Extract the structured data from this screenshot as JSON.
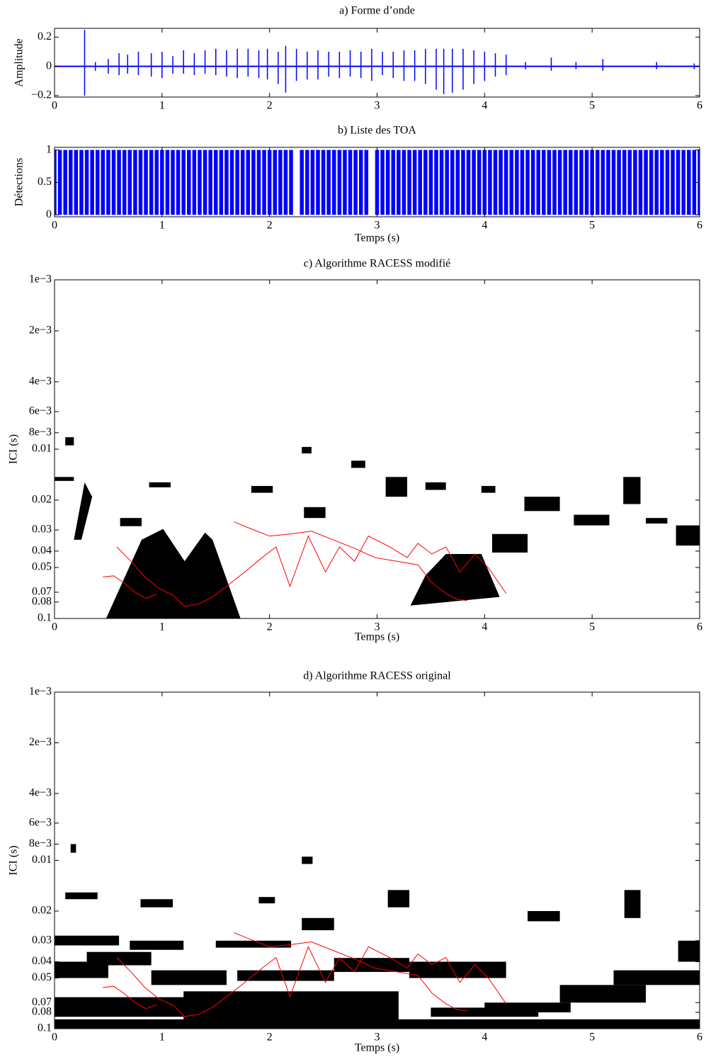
{
  "chart_data": [
    {
      "type": "waveform",
      "title": "a) Forme d’onde",
      "ylabel": "Amplitude",
      "color": "#0000ff",
      "xlim": [
        0,
        6
      ],
      "xticks": [
        0,
        1,
        2,
        3,
        4,
        5,
        6
      ],
      "ylim": [
        -0.21,
        0.26
      ],
      "yticks": [
        {
          "value": -0.2,
          "label": "−0.2"
        },
        0,
        0.2
      ],
      "x": [
        0.28,
        0.38,
        0.5,
        0.6,
        0.68,
        0.78,
        0.9,
        1.0,
        1.1,
        1.2,
        1.3,
        1.4,
        1.5,
        1.6,
        1.7,
        1.8,
        1.9,
        1.98,
        2.08,
        2.15,
        2.25,
        2.35,
        2.45,
        2.55,
        2.65,
        2.75,
        2.85,
        2.95,
        3.05,
        3.15,
        3.25,
        3.35,
        3.45,
        3.55,
        3.62,
        3.7,
        3.8,
        3.9,
        4.0,
        4.1,
        4.2,
        4.38,
        4.62,
        4.85,
        5.1,
        5.6,
        5.95
      ],
      "upper": [
        0.25,
        0.03,
        0.05,
        0.09,
        0.08,
        0.1,
        0.09,
        0.1,
        0.07,
        0.11,
        0.09,
        0.11,
        0.12,
        0.11,
        0.12,
        0.12,
        0.11,
        0.12,
        0.1,
        0.14,
        0.12,
        0.1,
        0.11,
        0.1,
        0.1,
        0.11,
        0.1,
        0.12,
        0.1,
        0.1,
        0.11,
        0.11,
        0.12,
        0.12,
        0.12,
        0.12,
        0.12,
        0.11,
        0.1,
        0.09,
        0.08,
        0.03,
        0.06,
        0.03,
        0.05,
        0.03,
        0.02
      ],
      "lower": [
        -0.2,
        -0.03,
        -0.05,
        -0.06,
        -0.05,
        -0.06,
        -0.07,
        -0.08,
        -0.05,
        -0.05,
        -0.06,
        -0.05,
        -0.06,
        -0.07,
        -0.08,
        -0.07,
        -0.08,
        -0.09,
        -0.12,
        -0.18,
        -0.1,
        -0.09,
        -0.09,
        -0.07,
        -0.08,
        -0.07,
        -0.08,
        -0.1,
        -0.06,
        -0.08,
        -0.1,
        -0.1,
        -0.12,
        -0.16,
        -0.19,
        -0.18,
        -0.16,
        -0.12,
        -0.1,
        -0.07,
        -0.06,
        -0.02,
        -0.03,
        -0.02,
        -0.03,
        -0.02,
        -0.02
      ]
    },
    {
      "type": "event",
      "title": "b) Liste des TOA",
      "ylabel": "Détections",
      "xlabel": "Temps (s)",
      "color": "#0000ff",
      "xlim": [
        0,
        6
      ],
      "xticks": [
        0,
        1,
        2,
        3,
        4,
        5,
        6
      ],
      "ylim": [
        -0.03,
        1.04
      ],
      "yticks": [
        0,
        0.5,
        1
      ],
      "x": [
        0,
        0.05,
        0.1,
        0.15,
        0.2,
        0.25,
        0.3,
        0.35,
        0.4,
        0.45,
        0.5,
        0.55,
        0.6,
        0.65,
        0.7,
        0.75,
        0.8,
        0.85,
        0.9,
        0.95,
        1.0,
        1.05,
        1.1,
        1.15,
        1.2,
        1.25,
        1.3,
        1.35,
        1.4,
        1.45,
        1.5,
        1.55,
        1.6,
        1.65,
        1.7,
        1.75,
        1.8,
        1.85,
        1.9,
        1.95,
        2.0,
        2.05,
        2.1,
        2.15,
        2.2,
        2.3,
        2.35,
        2.4,
        2.45,
        2.5,
        2.55,
        2.6,
        2.65,
        2.7,
        2.75,
        2.8,
        2.85,
        2.9,
        3.0,
        3.05,
        3.1,
        3.15,
        3.2,
        3.25,
        3.3,
        3.35,
        3.4,
        3.45,
        3.5,
        3.55,
        3.6,
        3.65,
        3.7,
        3.75,
        3.8,
        3.85,
        3.9,
        3.95,
        4.0,
        4.05,
        4.1,
        4.15,
        4.2,
        4.25,
        4.3,
        4.35,
        4.4,
        4.45,
        4.5,
        4.55,
        4.6,
        4.65,
        4.7,
        4.75,
        4.8,
        4.85,
        4.9,
        4.95,
        5.0,
        5.05,
        5.1,
        5.15,
        5.2,
        5.25,
        5.3,
        5.35,
        5.4,
        5.45,
        5.5,
        5.55,
        5.6,
        5.65,
        5.7,
        5.75,
        5.8,
        5.85,
        5.9,
        5.95,
        6.0
      ],
      "values": [
        1,
        1,
        1,
        1,
        1,
        1,
        1,
        1,
        1,
        1,
        1,
        1,
        1,
        1,
        1,
        1,
        1,
        1,
        1,
        1,
        1,
        1,
        1,
        1,
        1,
        1,
        1,
        1,
        1,
        1,
        1,
        1,
        1,
        1,
        1,
        1,
        1,
        1,
        1,
        1,
        1,
        1,
        1,
        1,
        1,
        1,
        1,
        1,
        1,
        1,
        1,
        1,
        1,
        1,
        1,
        1,
        1,
        1,
        1,
        1,
        1,
        1,
        1,
        1,
        1,
        1,
        1,
        1,
        1,
        1,
        1,
        1,
        1,
        1,
        1,
        1,
        1,
        1,
        1,
        1,
        1,
        1,
        1,
        1,
        1,
        1,
        1,
        1,
        1,
        1,
        1,
        1,
        1,
        1,
        1,
        1,
        1,
        1,
        1,
        1,
        1,
        1,
        1,
        1,
        1,
        1,
        1,
        1,
        1,
        1,
        1,
        1,
        1,
        1,
        1,
        1,
        1,
        1,
        1
      ]
    },
    {
      "type": "image",
      "title": "c) Algorithme RACESS modifié",
      "ylabel": "ICI (s)",
      "xlabel": "Temps (s)",
      "log_y": true,
      "y_reversed": true,
      "color": "#000000",
      "xlim": [
        0,
        6
      ],
      "xticks": [
        0,
        1,
        2,
        3,
        4,
        5,
        6
      ],
      "ylim": [
        0.001,
        0.1
      ],
      "yticks": [
        {
          "value": 0.001,
          "label": "1e−3"
        },
        {
          "value": 0.002,
          "label": "2e−3"
        },
        {
          "value": 0.004,
          "label": "4e−3"
        },
        {
          "value": 0.006,
          "label": "6e−3"
        },
        {
          "value": 0.008,
          "label": "8e−3"
        },
        0.01,
        0.02,
        0.03,
        0.04,
        0.05,
        0.07,
        0.08,
        0.1
      ],
      "blobs": [
        {
          "x": [
            0.48,
            0.81,
            1.01,
            1.21,
            1.4,
            1.47,
            1.73
          ],
          "y": [
            0.1,
            0.0343,
            0.0296,
            0.0459,
            0.0311,
            0.0343,
            0.1
          ]
        },
        {
          "x": [
            3.31,
            3.45,
            3.64,
            3.97,
            4.14
          ],
          "y": [
            0.0839,
            0.0557,
            0.0416,
            0.0416,
            0.0746
          ]
        },
        {
          "x": [
            4.07,
            4.4
          ],
          "y": [
            0.0317,
            0.0408
          ]
        },
        {
          "x": [
            5.78,
            6.0
          ],
          "y": [
            0.0282,
            0.0371
          ]
        },
        {
          "x": [
            0.18,
            0.28,
            0.35,
            0.25
          ],
          "y": [
            0.0343,
            0.0157,
            0.0191,
            0.0343
          ]
        },
        {
          "x": [
            0,
            0.18
          ],
          "y": [
            0.0146,
            0.0154
          ]
        },
        {
          "x": [
            3.08,
            3.28
          ],
          "y": [
            0.0146,
            0.0191
          ]
        },
        {
          "x": [
            5.29,
            5.45
          ],
          "y": [
            0.0146,
            0.0211
          ]
        },
        {
          "x": [
            4.37,
            4.7
          ],
          "y": [
            0.0191,
            0.0232
          ]
        },
        {
          "x": [
            4.83,
            5.16
          ],
          "y": [
            0.0244,
            0.0282
          ]
        },
        {
          "x": [
            2.32,
            2.52
          ],
          "y": [
            0.022,
            0.0255
          ]
        },
        {
          "x": [
            1.83,
            2.03
          ],
          "y": [
            0.0165,
            0.0181
          ]
        },
        {
          "x": [
            0.61,
            0.81
          ],
          "y": [
            0.0255,
            0.0285
          ]
        },
        {
          "x": [
            2.3,
            2.39
          ],
          "y": [
            0.0097,
            0.0106
          ]
        },
        {
          "x": [
            2.76,
            2.89
          ],
          "y": [
            0.0117,
            0.0129
          ]
        },
        {
          "x": [
            3.45,
            3.64
          ],
          "y": [
            0.0157,
            0.0174
          ]
        },
        {
          "x": [
            3.97,
            4.1
          ],
          "y": [
            0.0165,
            0.0181
          ]
        },
        {
          "x": [
            0.88,
            1.08
          ],
          "y": [
            0.0157,
            0.0168
          ]
        },
        {
          "x": [
            5.5,
            5.7
          ],
          "y": [
            0.0255,
            0.0275
          ]
        },
        {
          "x": [
            0.1,
            0.18
          ],
          "y": [
            0.0085,
            0.0095
          ]
        }
      ],
      "series": [
        {
          "color": "#ff0000",
          "x": [
            0.45,
            0.55,
            0.65,
            0.75,
            0.85,
            0.95
          ],
          "values": [
            0.0569,
            0.056,
            0.062,
            0.07,
            0.076,
            0.072
          ]
        },
        {
          "color": "#ff0000",
          "x": [
            0.58,
            0.71,
            0.84,
            0.97,
            1.11,
            1.21,
            1.34,
            1.47,
            1.6,
            1.77,
            1.93,
            2.06,
            2.19,
            2.36,
            2.52,
            2.65,
            2.79,
            2.92,
            3.12,
            3.28,
            3.38,
            3.51,
            3.64,
            3.77,
            3.91,
            4.04,
            4.2
          ],
          "values": [
            0.0378,
            0.0459,
            0.0569,
            0.0664,
            0.0732,
            0.0848,
            0.0822,
            0.0746,
            0.0646,
            0.0531,
            0.0437,
            0.0378,
            0.0646,
            0.0326,
            0.0531,
            0.0378,
            0.0459,
            0.0326,
            0.0378,
            0.0437,
            0.036,
            0.0416,
            0.0378,
            0.0531,
            0.0416,
            0.0506,
            0.0711
          ]
        },
        {
          "color": "#ff0000",
          "x": [
            1.67,
            1.83,
            2.0,
            2.19,
            2.39,
            2.59,
            2.79,
            2.98,
            3.18,
            3.38,
            3.51,
            3.64,
            3.74,
            3.84
          ],
          "values": [
            0.0269,
            0.0296,
            0.0326,
            0.0317,
            0.0305,
            0.0343,
            0.0385,
            0.0437,
            0.0459,
            0.0482,
            0.0615,
            0.0711,
            0.0769,
            0.0785
          ]
        }
      ]
    },
    {
      "type": "image",
      "title": "d) Algorithme RACESS original",
      "ylabel": "ICI (s)",
      "xlabel": "Temps (s)",
      "log_y": true,
      "y_reversed": true,
      "color": "#000000",
      "xlim": [
        0,
        6
      ],
      "xticks": [
        0,
        1,
        2,
        3,
        4,
        5,
        6
      ],
      "ylim": [
        0.001,
        0.1
      ],
      "yticks": [
        {
          "value": 0.001,
          "label": "1e−3"
        },
        {
          "value": 0.002,
          "label": "2e−3"
        },
        {
          "value": 0.004,
          "label": "4e−3"
        },
        {
          "value": 0.006,
          "label": "6e−3"
        },
        {
          "value": 0.008,
          "label": "8e−3"
        },
        0.01,
        0.02,
        0.03,
        0.04,
        0.05,
        0.07,
        0.08,
        0.1
      ],
      "blobs": [
        {
          "x": [
            0,
            6
          ],
          "y": [
            0.088,
            0.1
          ]
        },
        {
          "x": [
            0,
            1.3
          ],
          "y": [
            0.065,
            0.085
          ]
        },
        {
          "x": [
            1.2,
            3.2
          ],
          "y": [
            0.06,
            0.09
          ]
        },
        {
          "x": [
            0,
            0.5
          ],
          "y": [
            0.04,
            0.05
          ]
        },
        {
          "x": [
            0.3,
            0.9
          ],
          "y": [
            0.035,
            0.042
          ]
        },
        {
          "x": [
            0.9,
            1.6
          ],
          "y": [
            0.045,
            0.055
          ]
        },
        {
          "x": [
            1.7,
            2.6
          ],
          "y": [
            0.045,
            0.052
          ]
        },
        {
          "x": [
            2.6,
            3.3
          ],
          "y": [
            0.038,
            0.046
          ]
        },
        {
          "x": [
            3.3,
            4.2
          ],
          "y": [
            0.04,
            0.05
          ]
        },
        {
          "x": [
            4.0,
            4.8
          ],
          "y": [
            0.07,
            0.08
          ]
        },
        {
          "x": [
            4.7,
            5.5
          ],
          "y": [
            0.055,
            0.07
          ]
        },
        {
          "x": [
            5.2,
            6.0
          ],
          "y": [
            0.045,
            0.055
          ]
        },
        {
          "x": [
            5.8,
            6.0
          ],
          "y": [
            0.03,
            0.04
          ]
        },
        {
          "x": [
            0,
            0.6
          ],
          "y": [
            0.028,
            0.032
          ]
        },
        {
          "x": [
            0.7,
            1.2
          ],
          "y": [
            0.03,
            0.034
          ]
        },
        {
          "x": [
            1.5,
            2.2
          ],
          "y": [
            0.03,
            0.033
          ]
        },
        {
          "x": [
            3.5,
            4.5
          ],
          "y": [
            0.075,
            0.085
          ]
        },
        {
          "x": [
            2.3,
            2.6
          ],
          "y": [
            0.022,
            0.026
          ]
        },
        {
          "x": [
            3.1,
            3.3
          ],
          "y": [
            0.015,
            0.019
          ]
        },
        {
          "x": [
            5.3,
            5.45
          ],
          "y": [
            0.015,
            0.022
          ]
        },
        {
          "x": [
            0.1,
            0.4
          ],
          "y": [
            0.0155,
            0.017
          ]
        },
        {
          "x": [
            1.9,
            2.05
          ],
          "y": [
            0.0165,
            0.018
          ]
        },
        {
          "x": [
            4.4,
            4.7
          ],
          "y": [
            0.02,
            0.023
          ]
        },
        {
          "x": [
            0.8,
            1.1
          ],
          "y": [
            0.017,
            0.019
          ]
        },
        {
          "x": [
            2.3,
            2.4
          ],
          "y": [
            0.0095,
            0.0105
          ]
        },
        {
          "x": [
            0.15,
            0.2
          ],
          "y": [
            0.008,
            0.009
          ]
        }
      ],
      "series": [
        {
          "color": "#ff0000",
          "x": [
            0.45,
            0.55,
            0.65,
            0.75,
            0.85,
            0.95
          ],
          "values": [
            0.0569,
            0.056,
            0.062,
            0.07,
            0.076,
            0.072
          ]
        },
        {
          "color": "#ff0000",
          "x": [
            0.58,
            0.71,
            0.84,
            0.97,
            1.11,
            1.21,
            1.34,
            1.47,
            1.6,
            1.77,
            1.93,
            2.06,
            2.19,
            2.36,
            2.52,
            2.65,
            2.79,
            2.92,
            3.12,
            3.28,
            3.38,
            3.51,
            3.64,
            3.77,
            3.91,
            4.04,
            4.2
          ],
          "values": [
            0.0378,
            0.0459,
            0.0569,
            0.0664,
            0.0732,
            0.0848,
            0.0822,
            0.0746,
            0.0646,
            0.0531,
            0.0437,
            0.0378,
            0.0646,
            0.0326,
            0.0531,
            0.0378,
            0.0459,
            0.0326,
            0.0378,
            0.0437,
            0.036,
            0.0416,
            0.0378,
            0.0531,
            0.0416,
            0.0506,
            0.0711
          ]
        },
        {
          "color": "#ff0000",
          "x": [
            1.67,
            1.83,
            2.0,
            2.19,
            2.39,
            2.59,
            2.79,
            2.98,
            3.18,
            3.38,
            3.51,
            3.64,
            3.74,
            3.84
          ],
          "values": [
            0.0269,
            0.0296,
            0.0326,
            0.0317,
            0.0305,
            0.0343,
            0.0385,
            0.0437,
            0.0459,
            0.0482,
            0.0615,
            0.0711,
            0.0769,
            0.0785
          ]
        }
      ]
    }
  ]
}
